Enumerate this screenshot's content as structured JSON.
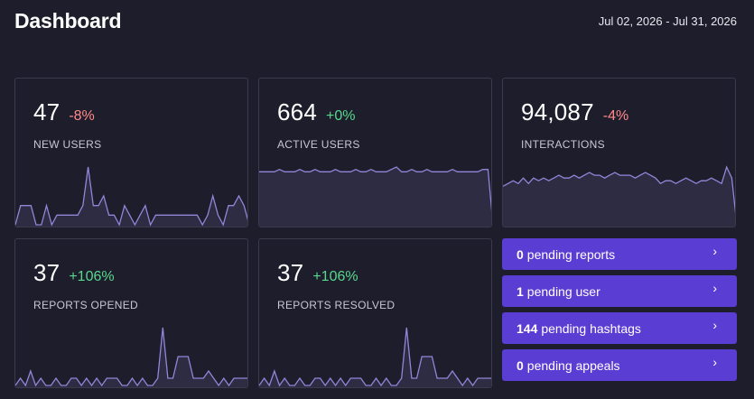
{
  "header": {
    "title": "Dashboard",
    "date_range": "Jul 02, 2026 - Jul 31, 2026"
  },
  "colors": {
    "background": "#1e1d2b",
    "card_border": "#3b3a4d",
    "sparkline_stroke": "#8f87d9",
    "sparkline_fill": "#2e2c42",
    "negative": "#ff8a8a",
    "positive": "#57d98d",
    "action_bg": "#5a3dd2"
  },
  "cards": [
    {
      "value": "47",
      "change": "-8%",
      "trend": "neg",
      "label": "NEW USERS",
      "series": [
        0,
        2,
        2,
        2,
        0,
        0,
        2,
        0,
        1,
        1,
        1,
        1,
        1,
        2,
        6,
        2,
        2,
        3,
        1,
        1,
        0,
        2,
        1,
        0,
        1,
        2,
        0,
        1,
        1,
        1,
        1,
        1,
        1,
        1,
        1,
        1,
        0,
        1,
        3,
        1,
        0,
        2,
        2,
        3,
        2,
        0
      ]
    },
    {
      "value": "664",
      "change": "+0%",
      "trend": "pos",
      "label": "ACTIVE USERS",
      "series": [
        22,
        22,
        22,
        22,
        23,
        22,
        22,
        22,
        23,
        22,
        22,
        23,
        22,
        22,
        22,
        23,
        22,
        22,
        22,
        23,
        22,
        22,
        23,
        22,
        22,
        22,
        23,
        24,
        22,
        22,
        23,
        22,
        22,
        23,
        22,
        22,
        22,
        22,
        23,
        22,
        22,
        22,
        22,
        22,
        23,
        23,
        0
      ]
    },
    {
      "value": "94,087",
      "change": "-4%",
      "trend": "neg",
      "label": "INTERACTIONS",
      "series": [
        14,
        15,
        16,
        15,
        17,
        15,
        17,
        16,
        17,
        16,
        17,
        18,
        17,
        17,
        18,
        17,
        18,
        19,
        18,
        18,
        17,
        18,
        19,
        18,
        18,
        18,
        17,
        18,
        19,
        18,
        17,
        15,
        16,
        16,
        15,
        16,
        17,
        16,
        15,
        16,
        16,
        17,
        16,
        15,
        21,
        17,
        0
      ]
    },
    {
      "value": "37",
      "change": "+106%",
      "trend": "pos",
      "label": "REPORTS OPENED",
      "series": [
        0,
        1,
        0,
        2,
        0,
        1,
        0,
        0,
        1,
        0,
        0,
        1,
        1,
        0,
        1,
        0,
        1,
        0,
        1,
        1,
        1,
        0,
        0,
        1,
        0,
        1,
        0,
        0,
        1,
        8,
        1,
        1,
        4,
        4,
        4,
        1,
        1,
        1,
        2,
        1,
        0,
        1,
        0,
        1,
        1,
        1,
        1
      ]
    },
    {
      "value": "37",
      "change": "+106%",
      "trend": "pos",
      "label": "REPORTS RESOLVED",
      "series": [
        0,
        1,
        0,
        2,
        0,
        1,
        0,
        0,
        1,
        0,
        0,
        1,
        1,
        0,
        1,
        0,
        1,
        0,
        1,
        1,
        1,
        0,
        0,
        1,
        0,
        1,
        0,
        0,
        1,
        8,
        1,
        1,
        4,
        4,
        4,
        1,
        1,
        1,
        2,
        1,
        0,
        1,
        0,
        1,
        1,
        1,
        1
      ]
    }
  ],
  "actions": [
    {
      "count": "0",
      "text": "pending reports",
      "chevron": "›"
    },
    {
      "count": "1",
      "text": "pending user",
      "chevron": "›"
    },
    {
      "count": "144",
      "text": "pending hashtags",
      "chevron": "›"
    },
    {
      "count": "0",
      "text": "pending appeals",
      "chevron": "›"
    }
  ]
}
